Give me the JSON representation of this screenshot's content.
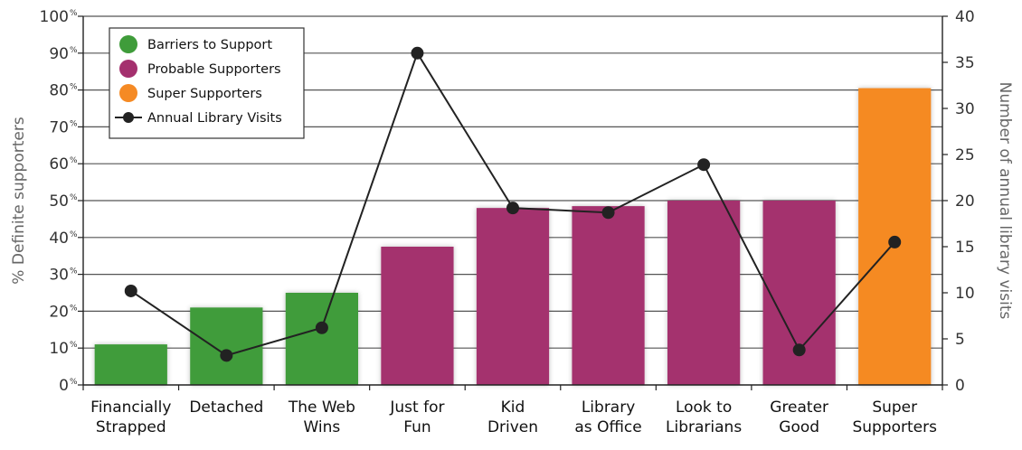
{
  "chart_data": {
    "type": "bar",
    "categories": [
      [
        "Financially",
        "Strapped"
      ],
      [
        "Detached"
      ],
      [
        "The Web",
        "Wins"
      ],
      [
        "Just for",
        "Fun"
      ],
      [
        "Kid",
        "Driven"
      ],
      [
        "Library",
        "as Office"
      ],
      [
        "Look to",
        "Librarians"
      ],
      [
        "Greater",
        "Good"
      ],
      [
        "Super",
        "Supporters"
      ]
    ],
    "series": [
      {
        "name": "Barriers to Support",
        "color": "#3f9c3a",
        "chart_type": "bar",
        "values": [
          11,
          21,
          25,
          null,
          null,
          null,
          null,
          null,
          null
        ]
      },
      {
        "name": "Probable Supporters",
        "color": "#a4306e",
        "chart_type": "bar",
        "values": [
          null,
          null,
          null,
          37.5,
          48,
          48.5,
          50,
          50,
          null
        ]
      },
      {
        "name": "Super Supporters",
        "color": "#f58a24",
        "chart_type": "bar",
        "values": [
          null,
          null,
          null,
          null,
          null,
          null,
          null,
          null,
          80.5
        ]
      },
      {
        "name": "Annual Library Visits",
        "color": "#222222",
        "chart_type": "line",
        "axis": "right",
        "values": [
          10.2,
          3.2,
          6.2,
          36,
          19.2,
          18.7,
          23.9,
          3.8,
          15.5
        ]
      }
    ],
    "y_left": {
      "label": "% Definite supporters",
      "ylim": [
        0,
        100
      ],
      "ticks": [
        0,
        10,
        20,
        30,
        40,
        50,
        60,
        70,
        80,
        90,
        100
      ],
      "tick_suffix": "%"
    },
    "y_right": {
      "label": "Number of annual library visits",
      "ylim": [
        0,
        40
      ],
      "ticks": [
        0,
        5,
        10,
        15,
        20,
        25,
        30,
        35,
        40
      ]
    },
    "grid": true,
    "legend_position": "top-left"
  }
}
